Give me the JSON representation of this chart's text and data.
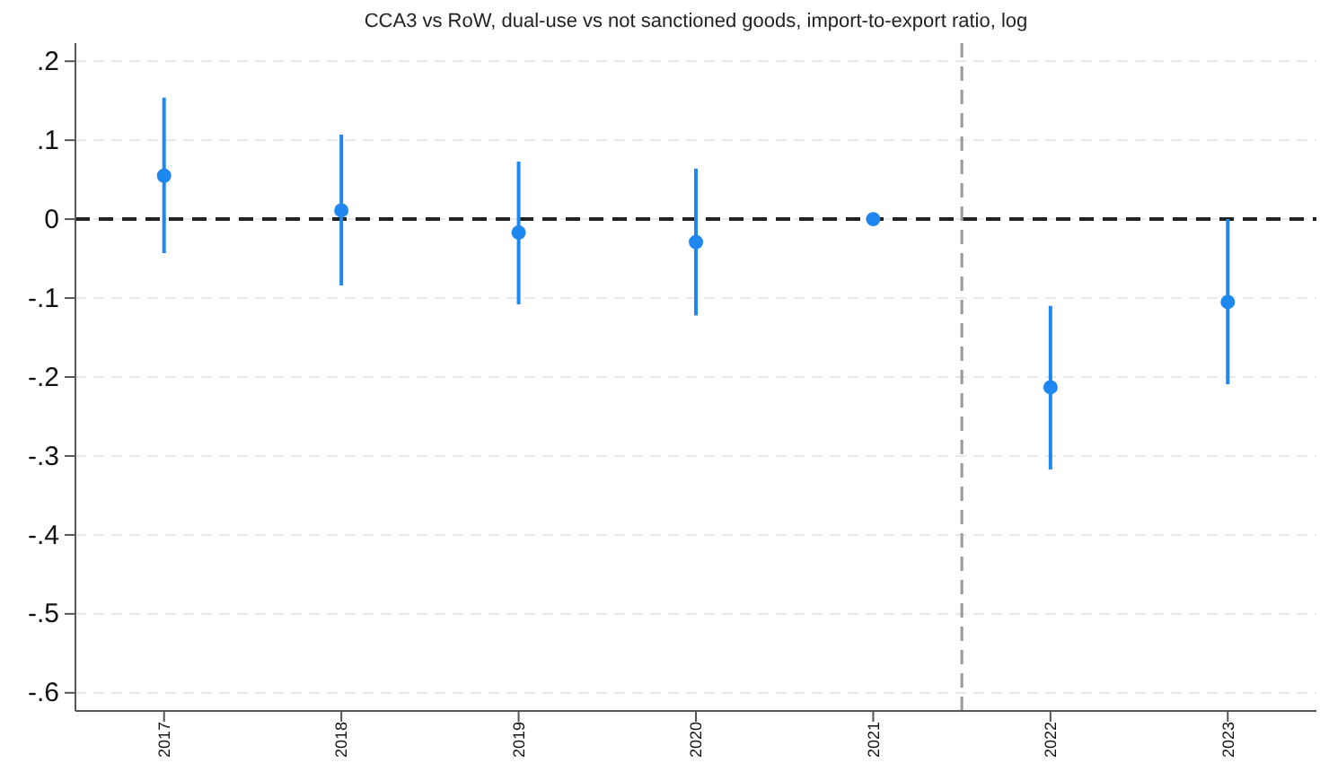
{
  "chart_data": {
    "type": "scatter",
    "title": "CCA3 vs RoW, dual-use vs not sanctioned goods, import-to-export ratio, log",
    "x": [
      2017,
      2018,
      2019,
      2020,
      2021,
      2022,
      2023
    ],
    "series": [
      {
        "color": "#1f87f0",
        "values": [
          0.055,
          0.011,
          -0.017,
          -0.029,
          0,
          -0.213,
          -0.105
        ],
        "errors": [
          [
            -0.043,
            0.154
          ],
          [
            -0.084,
            0.107
          ],
          [
            -0.108,
            0.073
          ],
          [
            -0.122,
            0.064
          ],
          null,
          [
            -0.317,
            -0.11
          ],
          [
            -0.209,
            0.0
          ]
        ]
      }
    ],
    "xlim": [
      2016.5,
      2023.5
    ],
    "xticks": [
      2017,
      2018,
      2019,
      2020,
      2021,
      2022,
      2023
    ],
    "ylim": [
      -0.623,
      0.223
    ],
    "yticks": [
      {
        "value": 0.2,
        "label": ".2"
      },
      {
        "value": 0.1,
        "label": ".1"
      },
      {
        "value": 0,
        "label": "0"
      },
      {
        "value": -0.1,
        "label": "-.1"
      },
      {
        "value": -0.2,
        "label": "-.2"
      },
      {
        "value": -0.3,
        "label": "-.3"
      },
      {
        "value": -0.4,
        "label": "-.4"
      },
      {
        "value": -0.5,
        "label": "-.5"
      },
      {
        "value": -0.6,
        "label": "-.6"
      }
    ],
    "grid": "y",
    "marker": "circle",
    "ref_lines": [
      {
        "axis": "y",
        "value": 0,
        "color": "#222222",
        "line_style": "dashed"
      },
      {
        "axis": "x",
        "value": 2021.5,
        "color": "#999999",
        "line_style": "dashed"
      }
    ]
  }
}
